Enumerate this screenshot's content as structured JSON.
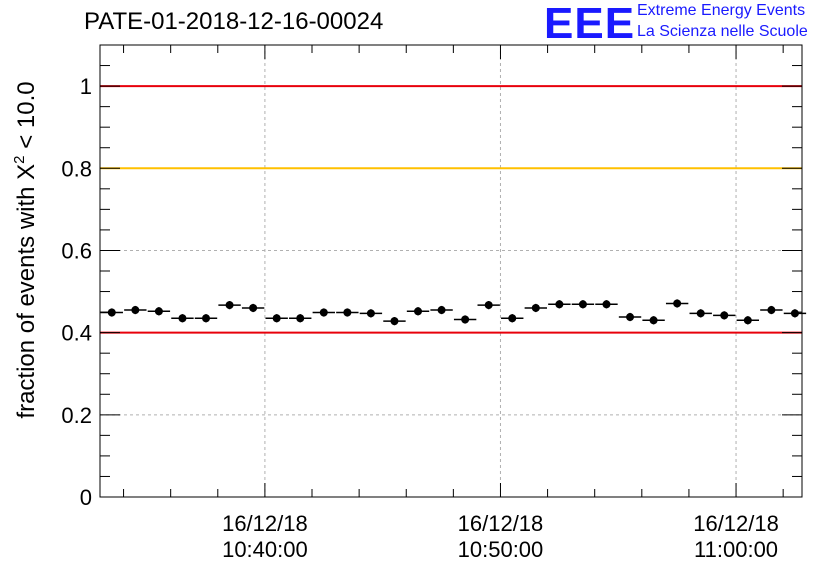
{
  "header": {
    "run_id": "PATE-01-2018-12-16-00024",
    "logo_text": "EEE",
    "logo_line_1": "Extreme Energy Events",
    "logo_line_2": "La Scienza nelle Scuole"
  },
  "colors": {
    "upper_limit": "#e8000b",
    "warning_level": "#ffc000",
    "lower_limit": "#e8000b",
    "markers": "#000000",
    "logo": "#1a1aff"
  },
  "chart_data": {
    "type": "scatter",
    "title": "PATE-01-2018-12-16-00024",
    "xlabel": "",
    "ylabel": "fraction of events with X² < 10.0",
    "ylabel_parts": {
      "prefix": "fraction of events with X",
      "superscript": "2",
      "suffix": " < 10.0"
    },
    "ylim": [
      0,
      1.1
    ],
    "y_ticks": [
      "0",
      "0.2",
      "0.4",
      "0.6",
      "0.8",
      "1"
    ],
    "y_tick_values": [
      0,
      0.2,
      0.4,
      0.6,
      0.8,
      1.0
    ],
    "xlim_minutes": [
      -7,
      22.8
    ],
    "x_tick_labels": [
      {
        "date": "16/12/18",
        "time": "10:40:00"
      },
      {
        "date": "16/12/18",
        "time": "10:50:00"
      },
      {
        "date": "16/12/18",
        "time": "11:00:00"
      }
    ],
    "x_tick_minutes": [
      0,
      10,
      20
    ],
    "grid": true,
    "reference_lines": [
      {
        "y": 1.0,
        "color": "#e8000b"
      },
      {
        "y": 0.8,
        "color": "#ffc000"
      },
      {
        "y": 0.4,
        "color": "#e8000b"
      }
    ],
    "bin_width_minutes": 0.95,
    "series": [
      {
        "x_minutes": [
          -6.5,
          -5.5,
          -4.5,
          -3.5,
          -2.5,
          -1.5,
          -0.5,
          0.5,
          1.5,
          2.5,
          3.5,
          4.5,
          5.5,
          6.5,
          7.5,
          8.5,
          9.5,
          10.5,
          11.5,
          12.5,
          13.5,
          14.5,
          15.5,
          16.5,
          17.5,
          18.5,
          19.5,
          20.5,
          21.5,
          22.5
        ],
        "values": [
          0.449,
          0.455,
          0.452,
          0.435,
          0.435,
          0.467,
          0.46,
          0.435,
          0.435,
          0.449,
          0.449,
          0.447,
          0.428,
          0.452,
          0.455,
          0.432,
          0.467,
          0.435,
          0.46,
          0.469,
          0.469,
          0.469,
          0.438,
          0.43,
          0.471,
          0.447,
          0.442,
          0.43,
          0.455,
          0.447
        ],
        "errors": [
          0.01,
          0.01,
          0.01,
          0.01,
          0.01,
          0.01,
          0.01,
          0.01,
          0.01,
          0.01,
          0.01,
          0.01,
          0.01,
          0.01,
          0.01,
          0.01,
          0.01,
          0.01,
          0.01,
          0.01,
          0.01,
          0.01,
          0.01,
          0.01,
          0.01,
          0.01,
          0.01,
          0.01,
          0.01,
          0.01
        ]
      }
    ]
  }
}
